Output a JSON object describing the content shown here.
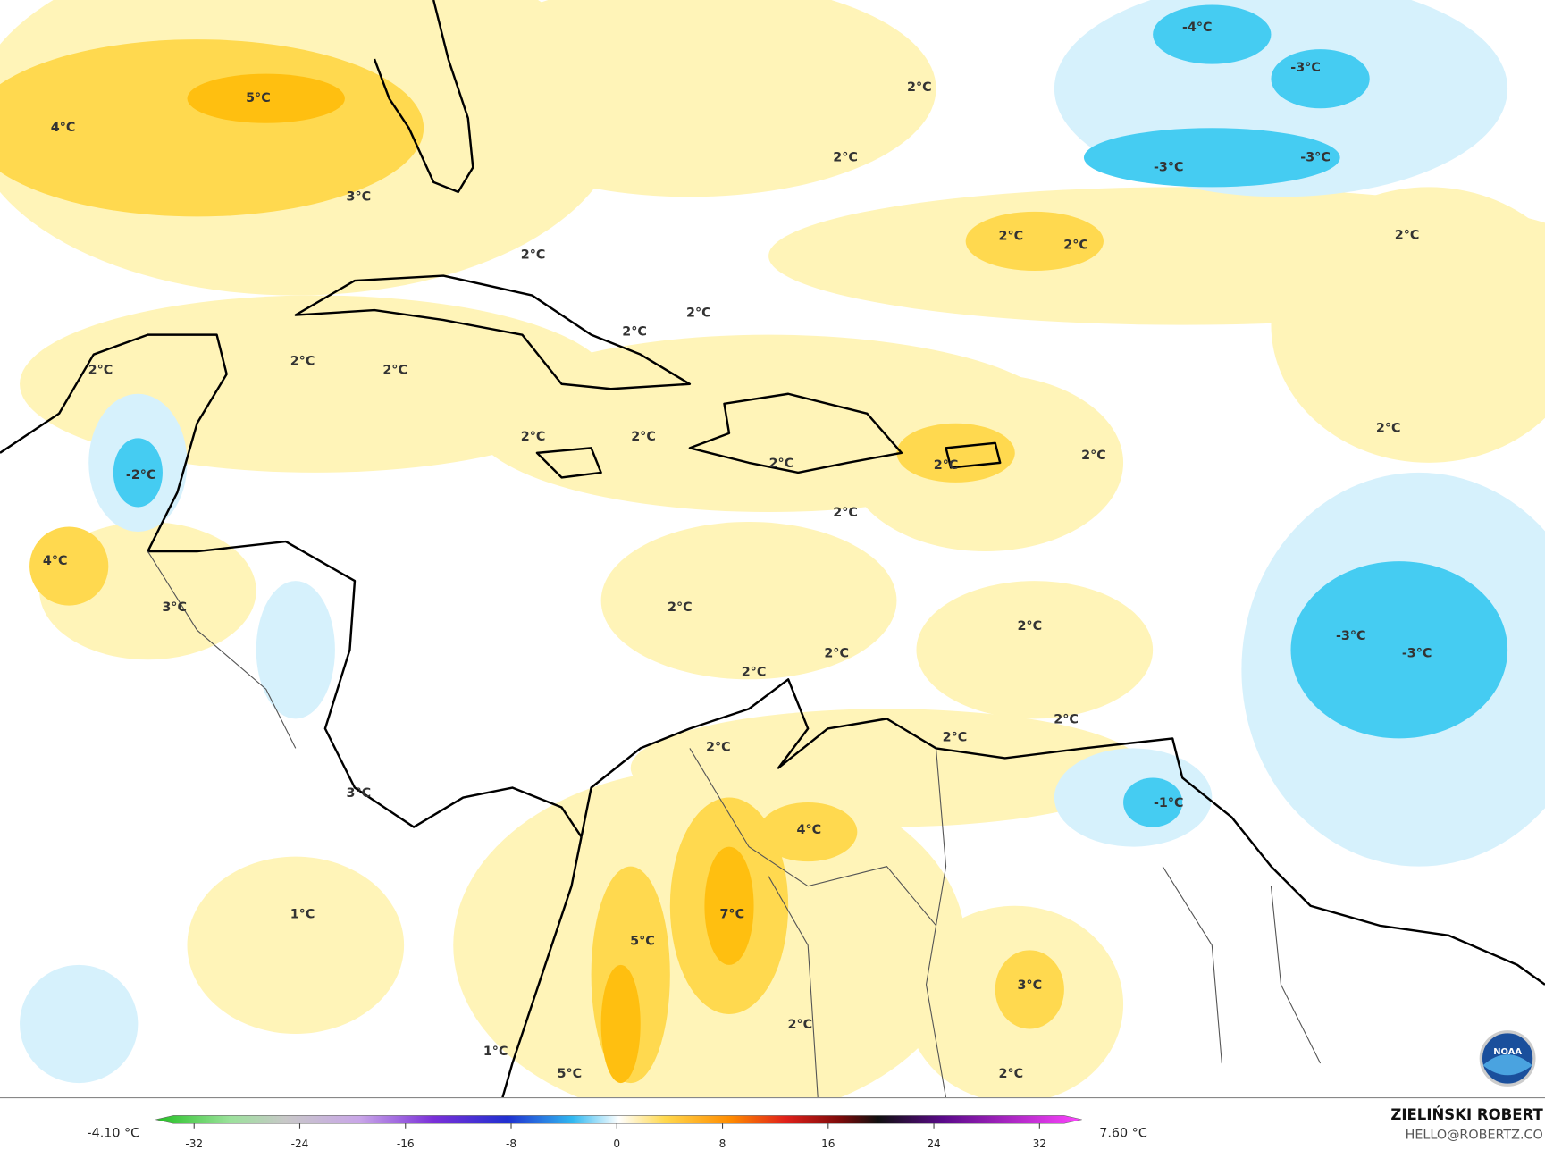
{
  "map": {
    "labels": [
      "-4°C",
      "-3°C",
      "5°C",
      "4°C",
      "2°C",
      "-3°C",
      "-3°C",
      "2°C",
      "3°C",
      "2°C",
      "2°C",
      "2°C",
      "2°C",
      "2°C",
      "2°C",
      "2°C",
      "2°C",
      "2°C",
      "2°C",
      "2°C",
      "2°C",
      "-2°C",
      "2°C",
      "2°C",
      "2°C",
      "2°C",
      "4°C",
      "3°C",
      "2°C",
      "-3°C",
      "-3°C",
      "2°C",
      "2°C",
      "2°C",
      "2°C",
      "2°C",
      "2°C",
      "-1°C",
      "3°C",
      "4°C",
      "7°C",
      "1°C",
      "5°C",
      "3°C",
      "2°C",
      "1°C",
      "5°C",
      "2°C"
    ]
  },
  "colorbar": {
    "min_label": "-4.10 °C",
    "max_label": "7.60 °C",
    "ticks": [
      -32,
      -24,
      -16,
      -8,
      0,
      8,
      16,
      24,
      32
    ]
  },
  "credit": {
    "author": "ZIELIŃSKI ROBERT",
    "contact": "HELLO@ROBERTZ.CO",
    "logo": "NOAA"
  }
}
